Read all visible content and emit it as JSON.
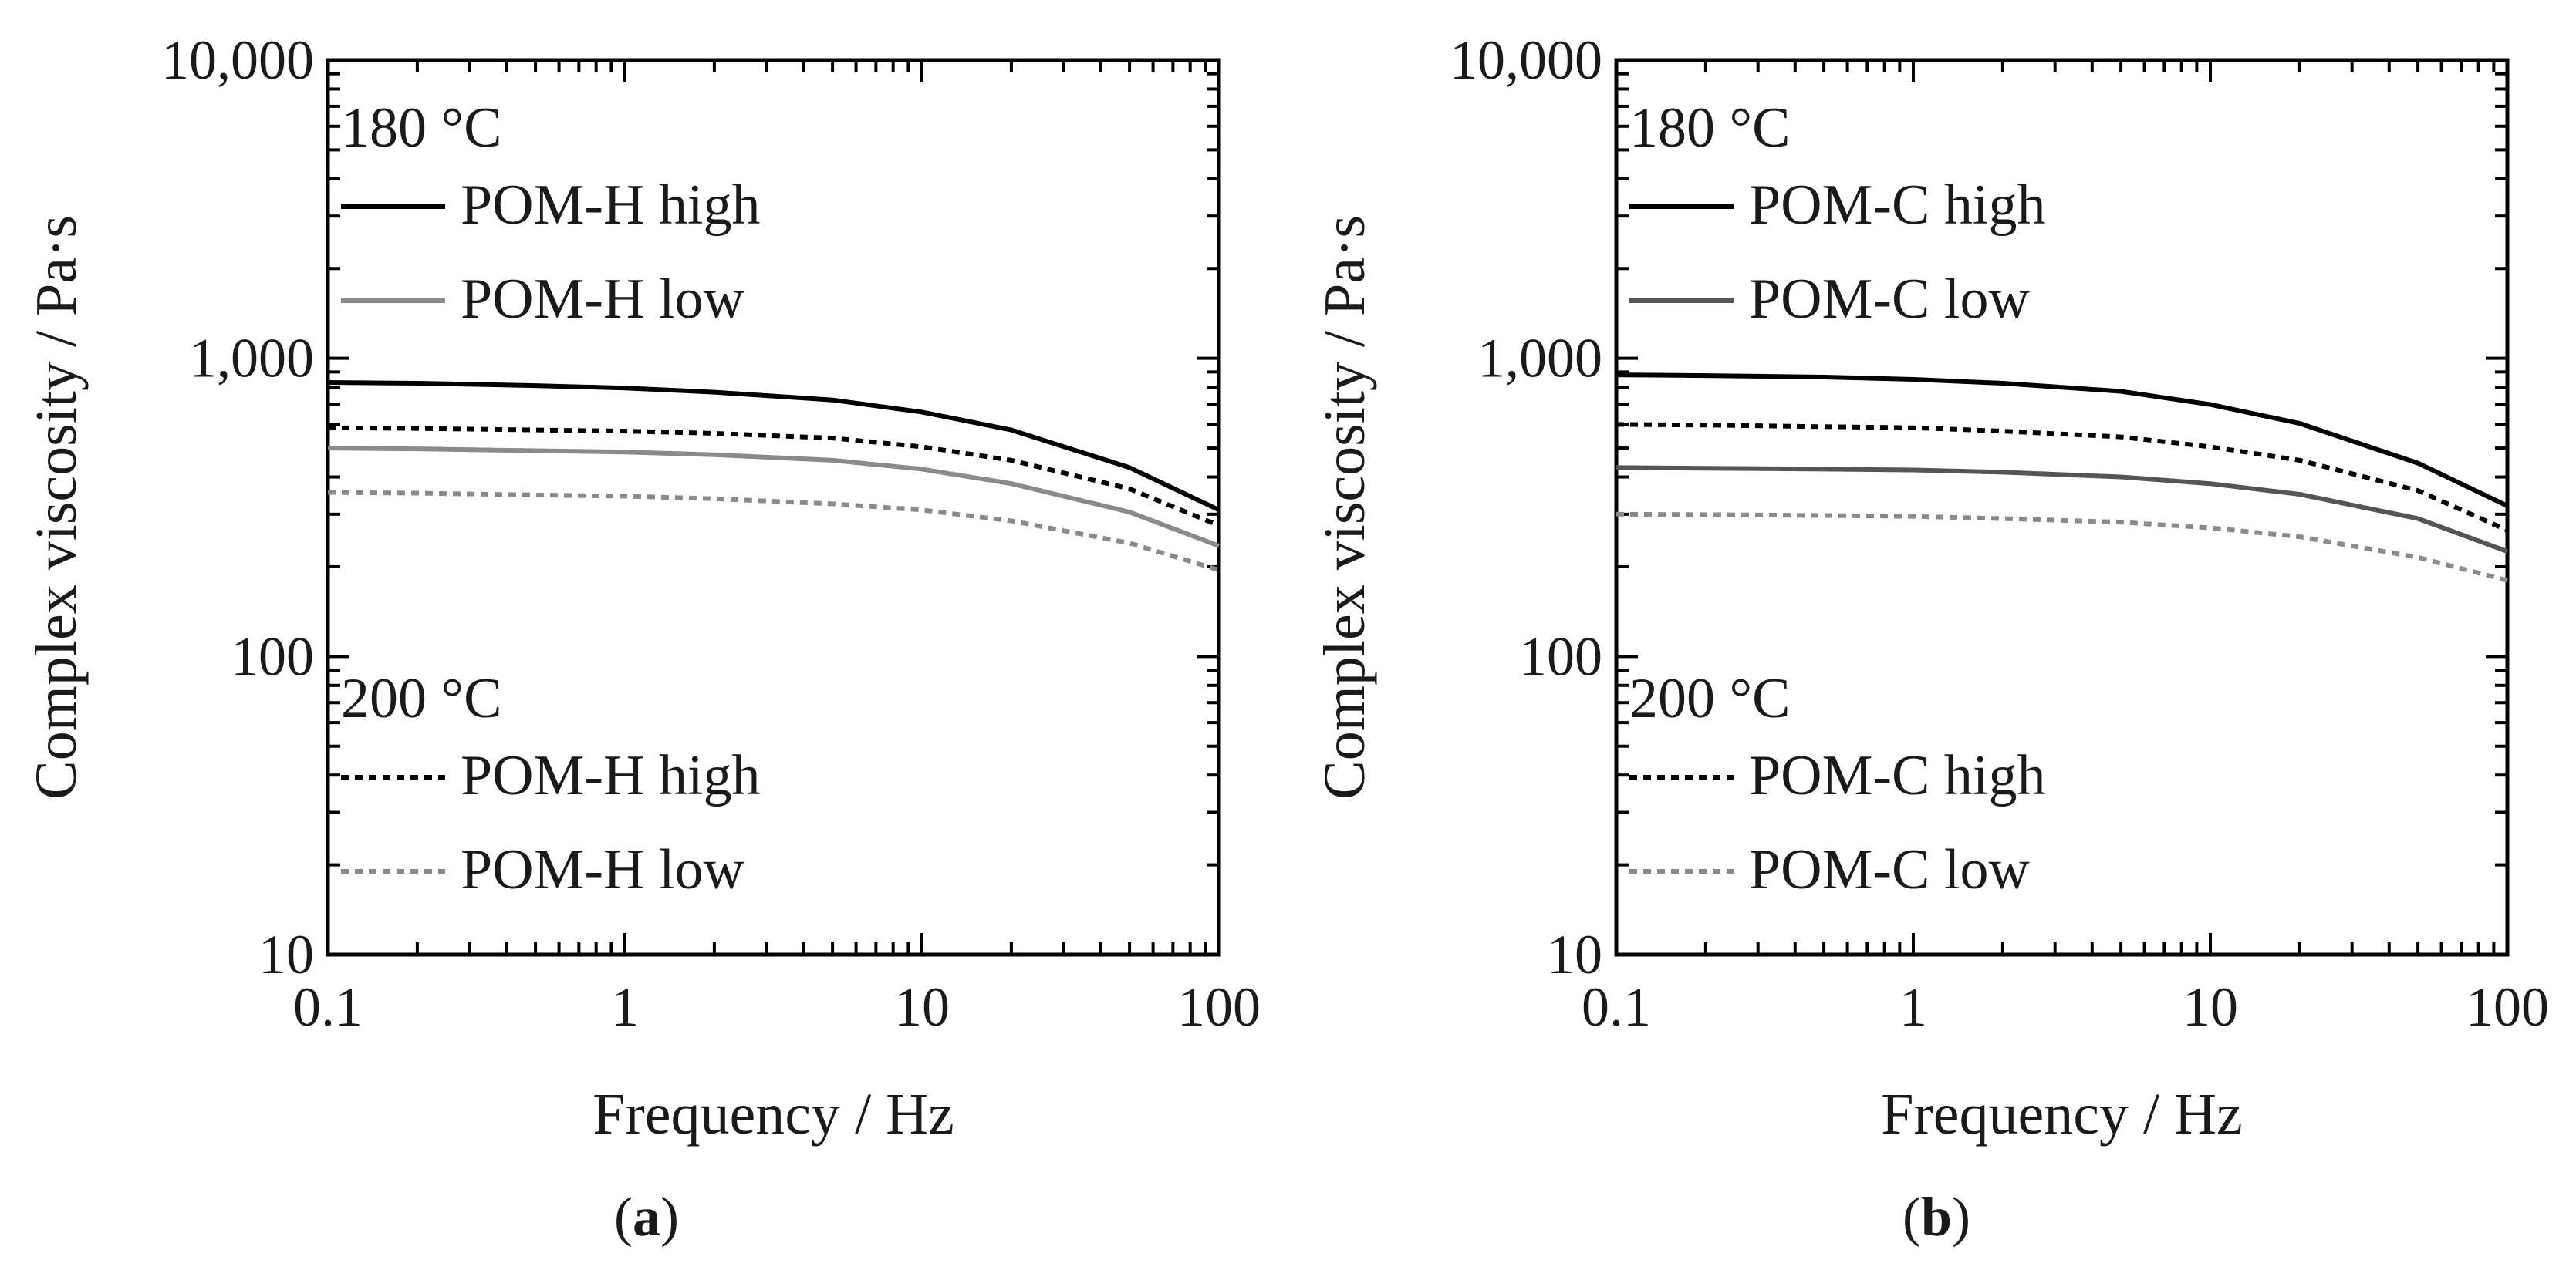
{
  "chart_data": [
    {
      "type": "line",
      "panel_label": "a",
      "xlabel": "Frequency / Hz",
      "ylabel": "Complex viscosity / Pa·s",
      "xscale": "log",
      "yscale": "log",
      "xlim": [
        0.1,
        100
      ],
      "ylim": [
        10,
        10000
      ],
      "xticks": [
        "0.1",
        "1",
        "10",
        "100"
      ],
      "yticks": [
        "10",
        "100",
        "1,000",
        "10,000"
      ],
      "temp_label_1": "180 °C",
      "temp_label_2": "200 °C",
      "x": [
        0.1,
        0.2,
        0.5,
        1,
        2,
        5,
        10,
        20,
        50,
        100
      ],
      "series": [
        {
          "name": "POM-H high",
          "group": "180 °C",
          "color": "#000000",
          "dash": "solid",
          "values": [
            830,
            825,
            810,
            795,
            770,
            725,
            660,
            575,
            430,
            310
          ]
        },
        {
          "name": "POM-H low",
          "group": "180 °C",
          "color": "#8a8a8a",
          "dash": "solid",
          "values": [
            500,
            497,
            490,
            485,
            475,
            455,
            425,
            380,
            305,
            235
          ]
        },
        {
          "name": "POM-H high",
          "group": "200 °C",
          "color": "#000000",
          "dash": "dotted",
          "values": [
            585,
            582,
            575,
            570,
            560,
            540,
            505,
            455,
            365,
            275
          ]
        },
        {
          "name": "POM-H low",
          "group": "200 °C",
          "color": "#8a8a8a",
          "dash": "dotted",
          "values": [
            355,
            353,
            348,
            345,
            338,
            325,
            310,
            285,
            240,
            195
          ]
        }
      ]
    },
    {
      "type": "line",
      "panel_label": "b",
      "xlabel": "Frequency / Hz",
      "ylabel": "Complex viscosity / Pa·s",
      "xscale": "log",
      "yscale": "log",
      "xlim": [
        0.1,
        100
      ],
      "ylim": [
        10,
        10000
      ],
      "xticks": [
        "0.1",
        "1",
        "10",
        "100"
      ],
      "yticks": [
        "10",
        "100",
        "1,000",
        "10,000"
      ],
      "temp_label_1": "180 °C",
      "temp_label_2": "200 °C",
      "x": [
        0.1,
        0.2,
        0.5,
        1,
        2,
        5,
        10,
        20,
        50,
        100
      ],
      "series": [
        {
          "name": "POM-C high",
          "group": "180 °C",
          "color": "#000000",
          "dash": "solid",
          "values": [
            880,
            875,
            865,
            850,
            825,
            775,
            700,
            605,
            445,
            320
          ]
        },
        {
          "name": "POM-C low",
          "group": "180 °C",
          "color": "#555555",
          "dash": "solid",
          "values": [
            430,
            428,
            425,
            422,
            415,
            400,
            380,
            350,
            290,
            225
          ]
        },
        {
          "name": "POM-C high",
          "group": "200 °C",
          "color": "#000000",
          "dash": "dotted",
          "values": [
            600,
            597,
            590,
            585,
            570,
            545,
            505,
            455,
            360,
            265
          ]
        },
        {
          "name": "POM-C low",
          "group": "200 °C",
          "color": "#8a8a8a",
          "dash": "dotted",
          "values": [
            300,
            299,
            297,
            295,
            290,
            282,
            270,
            252,
            215,
            180
          ]
        }
      ]
    }
  ]
}
